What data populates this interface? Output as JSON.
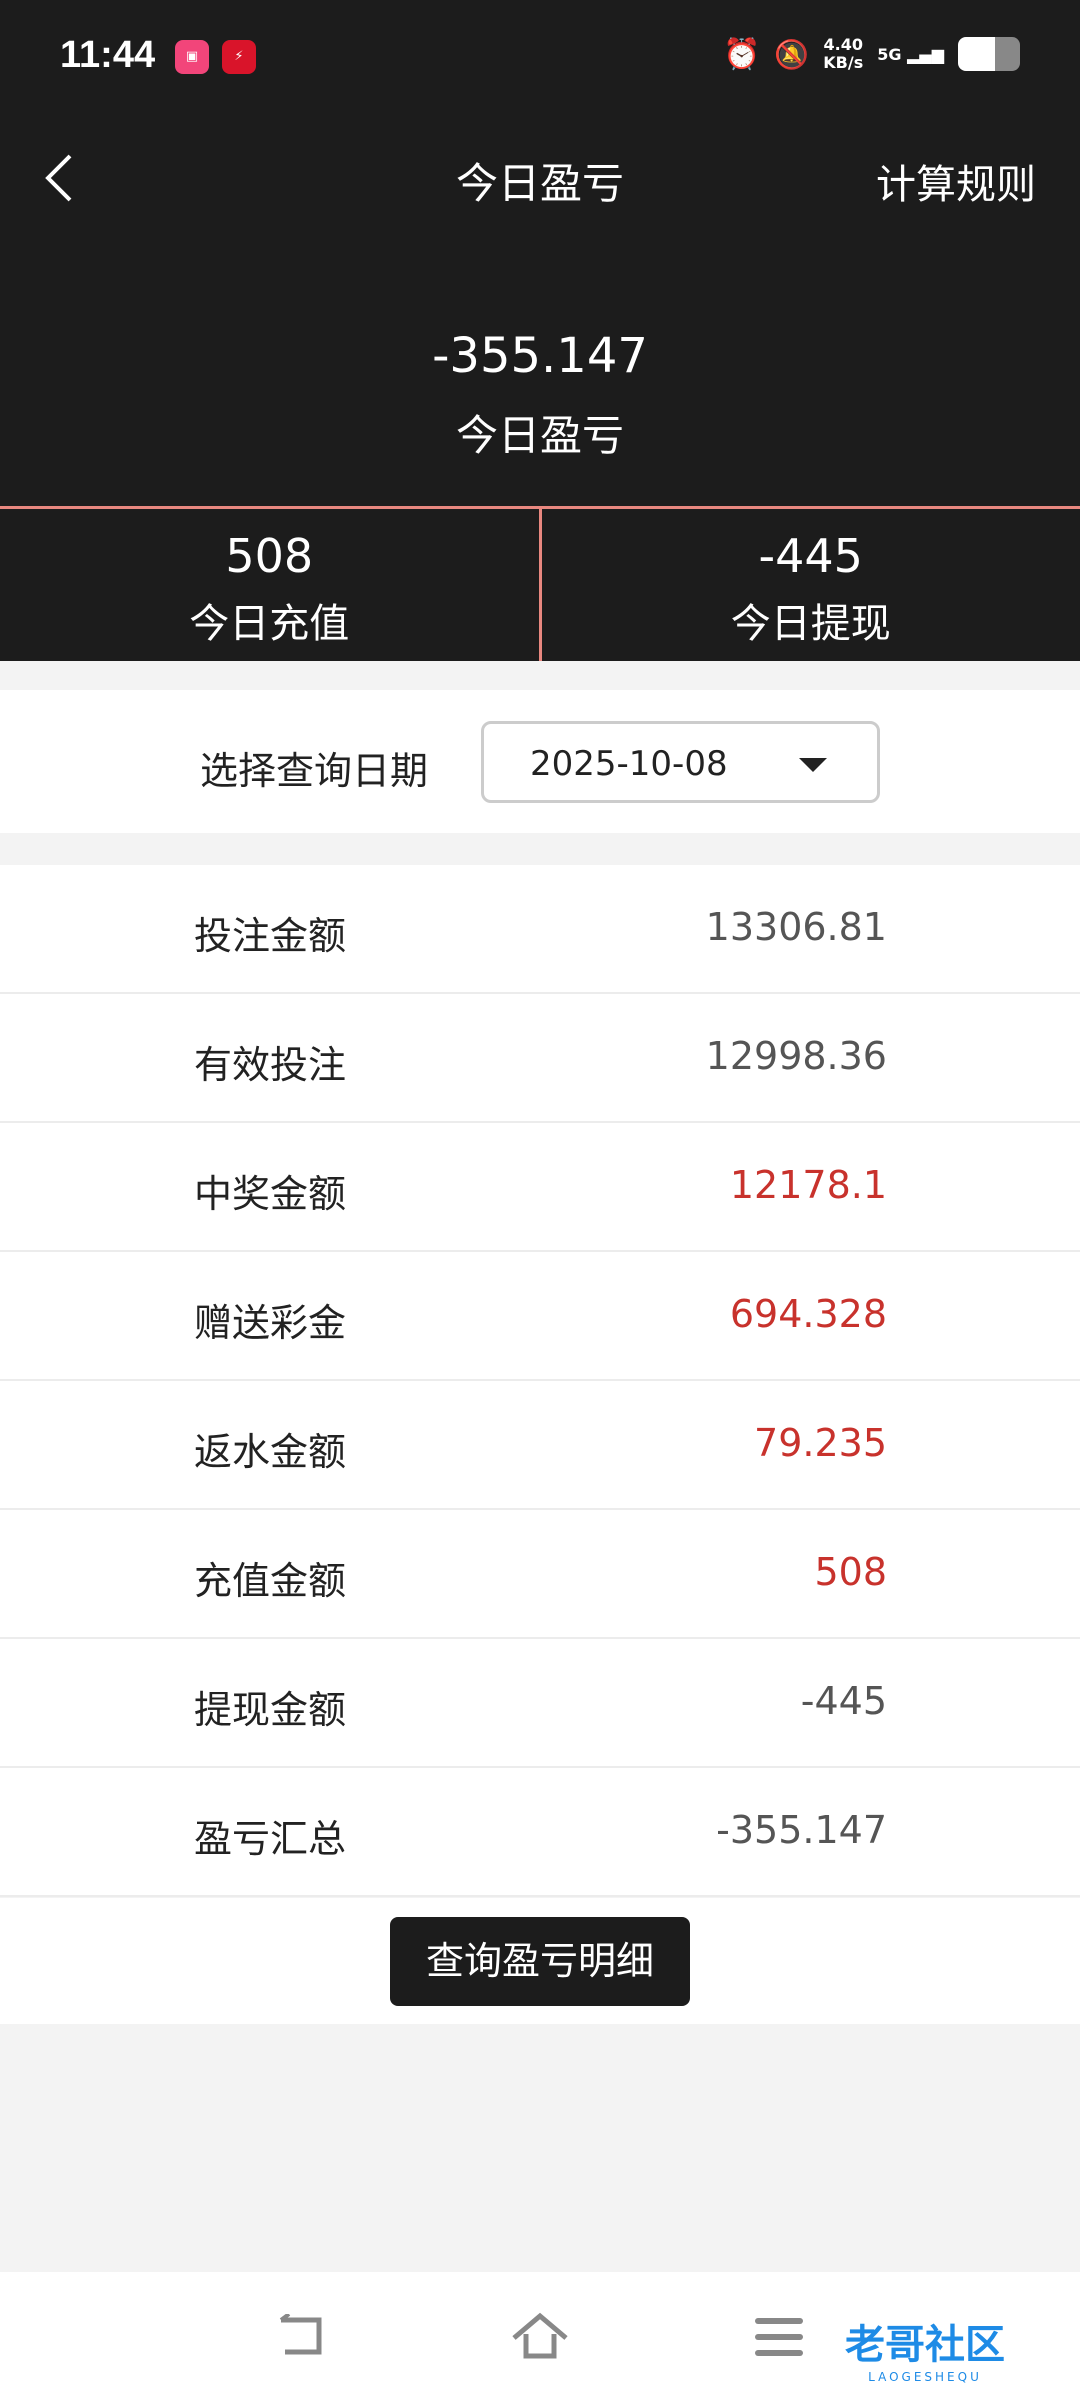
{
  "status_bar": {
    "time": "11:44",
    "app_icons": [
      "bilibili",
      "雷速"
    ],
    "net_speed": "4.40",
    "net_unit": "KB/s",
    "network": "5G"
  },
  "header": {
    "title": "今日盈亏",
    "rules_label": "计算规则"
  },
  "summary": {
    "value": "-355.147",
    "label": "今日盈亏"
  },
  "stats": [
    {
      "value": "508",
      "label": "今日充值"
    },
    {
      "value": "-445",
      "label": "今日提现"
    }
  ],
  "date": {
    "label": "选择查询日期",
    "value": "2025-10-08"
  },
  "rows": [
    {
      "label": "投注金额",
      "value": "13306.81",
      "color": "#555555"
    },
    {
      "label": "有效投注",
      "value": "12998.36",
      "color": "#555555"
    },
    {
      "label": "中奖金额",
      "value": "12178.1",
      "color": "#c8322c"
    },
    {
      "label": "赠送彩金",
      "value": "694.328",
      "color": "#c8322c"
    },
    {
      "label": "返水金额",
      "value": "79.235",
      "color": "#c8322c"
    },
    {
      "label": "充值金额",
      "value": "508",
      "color": "#c8322c"
    },
    {
      "label": "提现金额",
      "value": "-445",
      "color": "#555555"
    },
    {
      "label": "盈亏汇总",
      "value": "-355.147",
      "color": "#555555"
    }
  ],
  "detail_button": "查询盈亏明细",
  "watermark": {
    "text": "老哥社区",
    "sub": "LAOGESHEQU"
  }
}
